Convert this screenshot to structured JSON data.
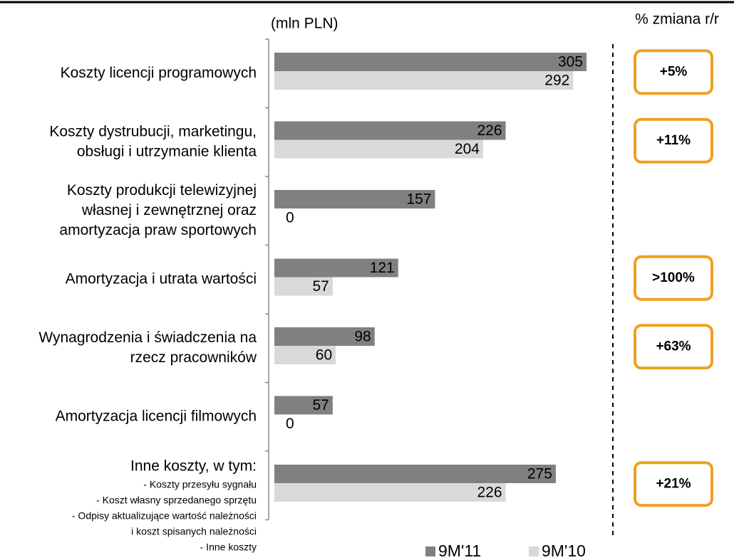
{
  "chart_data": {
    "type": "bar",
    "unit_label": "(mln PLN)",
    "change_header": "% zmiana r/r",
    "categories": [
      [
        "Koszty licencji programowych"
      ],
      [
        "Koszty dystrubucji, marketingu,",
        "obsługi i utrzymanie klienta"
      ],
      [
        "Koszty produkcji telewizyjnej",
        "własnej i zewnętrznej oraz",
        "amortyzacja praw sportowych"
      ],
      [
        "Amortyzacja i utrata wartości"
      ],
      [
        "Wynagrodzenia i świadczenia na",
        "rzecz pracowników"
      ],
      [
        "Amortyzacja licencji filmowych"
      ],
      [
        "Inne koszty, w tym:"
      ]
    ],
    "notes": [
      "- Koszty przesyłu sygnału",
      "- Koszt własny sprzedanego sprzętu",
      "- Odpisy aktualizujące wartość należności",
      "i koszt spisanych należności",
      "- Inne koszty"
    ],
    "series": [
      {
        "name": "9M'11",
        "color": "#808080",
        "values": [
          305,
          226,
          157,
          121,
          98,
          57,
          275
        ]
      },
      {
        "name": "9M'10",
        "color": "#d9d9d9",
        "values": [
          292,
          204,
          0,
          57,
          60,
          0,
          226
        ]
      }
    ],
    "changes": [
      "+5%",
      "+11%",
      null,
      ">100%",
      "+63%",
      null,
      "+21%"
    ],
    "change_color": "#f0a020"
  }
}
